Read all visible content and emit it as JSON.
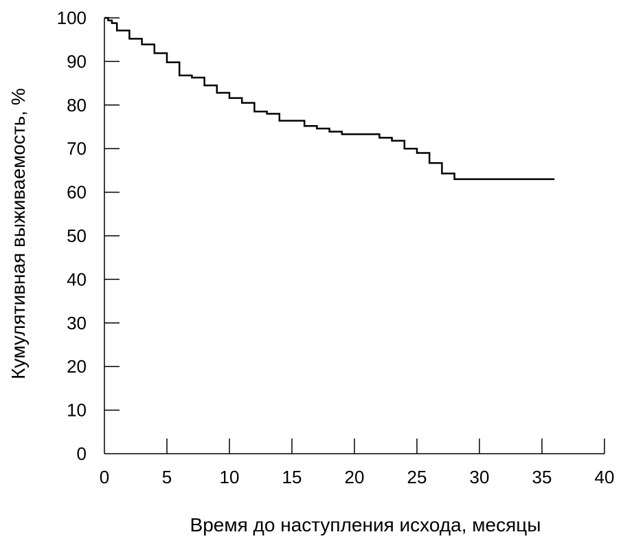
{
  "chart_data": {
    "type": "line",
    "title": "",
    "xlabel": "Время до наступления исхода, месяцы",
    "ylabel": "Кумулятивная выживаемость, %",
    "xlim": [
      0,
      40
    ],
    "ylim": [
      0,
      100
    ],
    "x_ticks": [
      "0",
      "5",
      "10",
      "15",
      "20",
      "25",
      "30",
      "35",
      "40"
    ],
    "y_ticks": [
      "0",
      "10",
      "20",
      "30",
      "40",
      "50",
      "60",
      "70",
      "80",
      "90",
      "100"
    ],
    "grid": false,
    "legend": "none",
    "line_style": "step",
    "series": [
      {
        "color": "#000000",
        "x": [
          0,
          0.3,
          0.6,
          1,
          2,
          3,
          4,
          5,
          6,
          7,
          8,
          9,
          10,
          11,
          12,
          13,
          14,
          15,
          16,
          17,
          18,
          19,
          20,
          21,
          22,
          23,
          24,
          25,
          26,
          27,
          28,
          36
        ],
        "y": [
          100,
          99.4,
          98.8,
          97.1,
          95.2,
          93.9,
          91.9,
          89.8,
          86.8,
          86.3,
          84.5,
          82.8,
          81.6,
          80.5,
          78.5,
          78.0,
          76.4,
          76.4,
          75.2,
          74.6,
          73.9,
          73.3,
          73.3,
          73.3,
          72.5,
          71.8,
          70.0,
          69.0,
          66.7,
          64.3,
          63.0,
          63.0
        ]
      }
    ]
  }
}
